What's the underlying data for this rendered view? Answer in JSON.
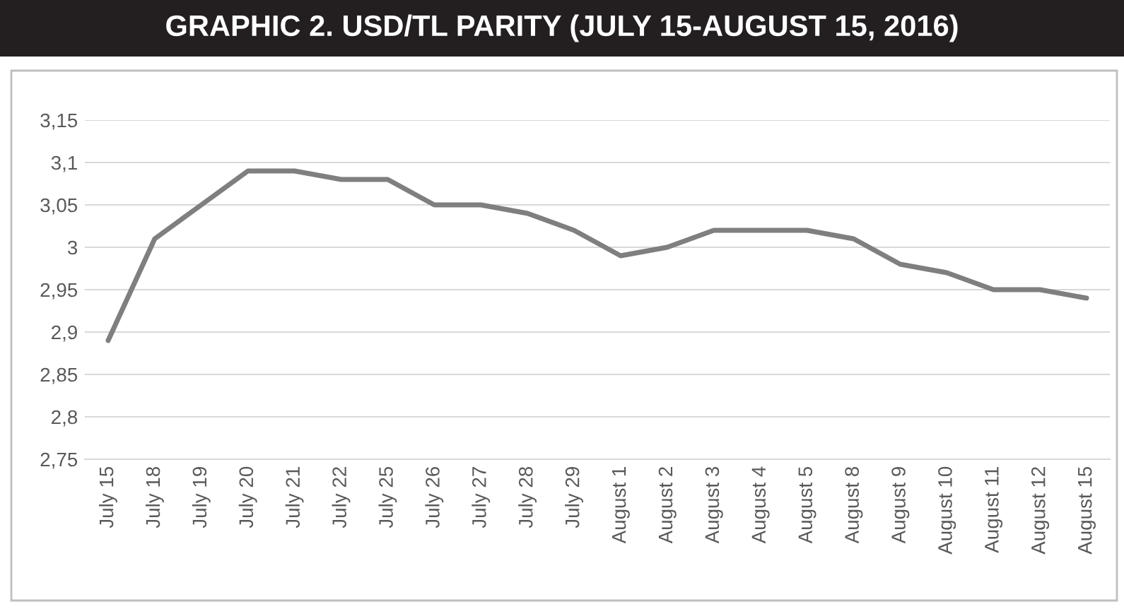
{
  "chart_data": {
    "type": "line",
    "title": "GRAPHIC 2. USD/TL PARITY (JULY 15-AUGUST 15, 2016)",
    "categories": [
      "July 15",
      "July 18",
      "July 19",
      "July 20",
      "July 21",
      "July 22",
      "July 25",
      "July 26",
      "July 27",
      "July 28",
      "July 29",
      "August 1",
      "August 2",
      "August 3",
      "August 4",
      "August 5",
      "August 8",
      "August 9",
      "August 10",
      "August 11",
      "August 12",
      "August 15"
    ],
    "series": [
      {
        "color": "#7f7f7f",
        "values": [
          2.89,
          3.01,
          3.05,
          3.09,
          3.09,
          3.08,
          3.08,
          3.05,
          3.05,
          3.04,
          3.02,
          2.99,
          3.0,
          3.02,
          3.02,
          3.02,
          3.01,
          2.98,
          2.97,
          2.95,
          2.95,
          2.94
        ]
      }
    ],
    "ylim": [
      2.75,
      3.15
    ],
    "yticks": [
      {
        "value": 2.75,
        "label": "2,75"
      },
      {
        "value": 2.8,
        "label": "2,8"
      },
      {
        "value": 2.85,
        "label": "2,85"
      },
      {
        "value": 2.9,
        "label": "2,9"
      },
      {
        "value": 2.95,
        "label": "2,95"
      },
      {
        "value": 3,
        "label": "3"
      },
      {
        "value": 3.05,
        "label": "3,05"
      },
      {
        "value": 3.1,
        "label": "3,1"
      },
      {
        "value": 3.15,
        "label": "3,15"
      }
    ],
    "grid": "y",
    "legend": false,
    "marker": "none",
    "line_style": "solid"
  }
}
